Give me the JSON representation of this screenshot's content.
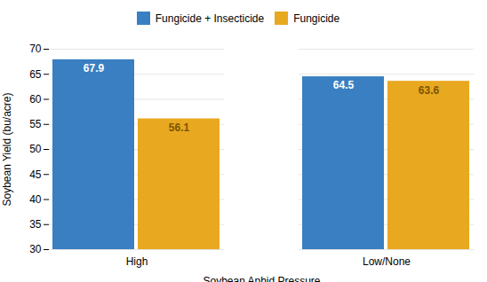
{
  "chart_data": {
    "type": "bar",
    "categories": [
      "High",
      "Low/None"
    ],
    "series": [
      {
        "name": "Fungicide + Insecticide",
        "values": [
          67.9,
          64.5
        ],
        "color": "#3a7fc1"
      },
      {
        "name": "Fungicide",
        "values": [
          56.1,
          63.6
        ],
        "color": "#e8a820"
      }
    ],
    "xlabel": "Soybean Aphid Pressure",
    "ylabel": "Soybean Yield (bu/acre)",
    "ylim": [
      30,
      70
    ],
    "yticks": [
      30,
      35,
      40,
      45,
      50,
      55,
      60,
      65,
      70
    ],
    "grid": true,
    "legend": "top",
    "data_labels": true
  }
}
